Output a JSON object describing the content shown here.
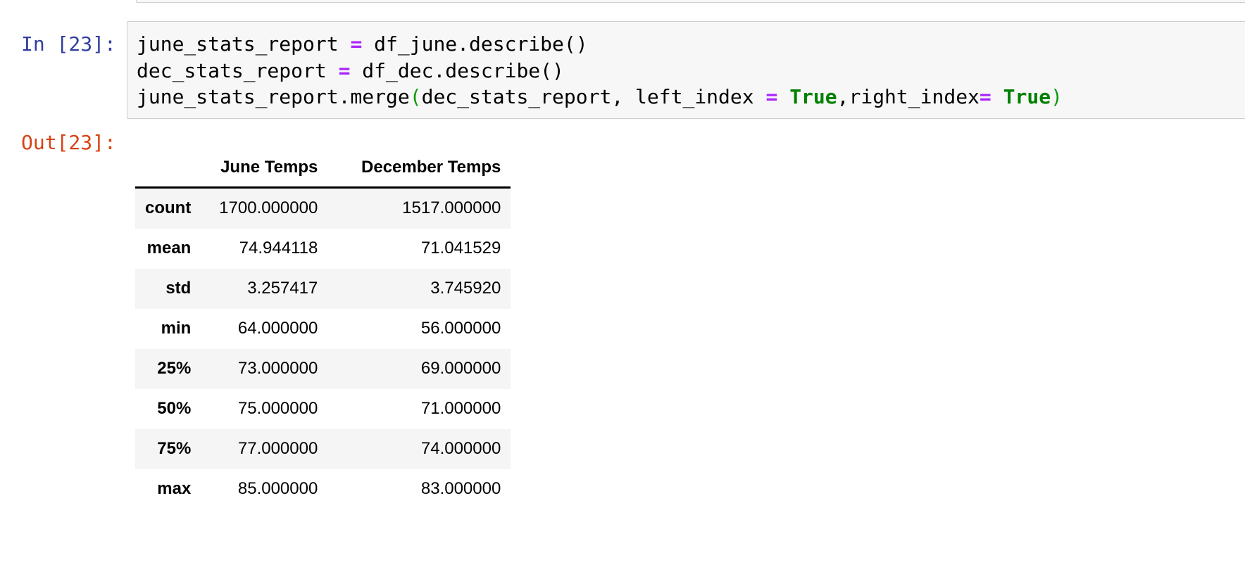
{
  "input_cell": {
    "prompt": "In [23]:",
    "code_lines": [
      [
        {
          "text": "june_stats_report ",
          "style": "plain"
        },
        {
          "text": "=",
          "style": "op"
        },
        {
          "text": " df_june.describe()",
          "style": "plain"
        }
      ],
      [
        {
          "text": "dec_stats_report ",
          "style": "plain"
        },
        {
          "text": "=",
          "style": "op"
        },
        {
          "text": " df_dec.describe()",
          "style": "plain"
        }
      ],
      [
        {
          "text": "june_stats_report.merge",
          "style": "plain"
        },
        {
          "text": "(",
          "style": "br"
        },
        {
          "text": "dec_stats_report, left_index ",
          "style": "plain"
        },
        {
          "text": "=",
          "style": "op"
        },
        {
          "text": " ",
          "style": "plain"
        },
        {
          "text": "True",
          "style": "kw"
        },
        {
          "text": ",right_index",
          "style": "plain"
        },
        {
          "text": "=",
          "style": "op"
        },
        {
          "text": " ",
          "style": "plain"
        },
        {
          "text": "True",
          "style": "kw"
        },
        {
          "text": ")",
          "style": "br"
        }
      ]
    ]
  },
  "output_cell": {
    "prompt": "Out[23]:",
    "table": {
      "index_header": "",
      "columns": [
        "June Temps",
        "December Temps"
      ],
      "rows": [
        {
          "index": "count",
          "values": [
            "1700.000000",
            "1517.000000"
          ]
        },
        {
          "index": "mean",
          "values": [
            "74.944118",
            "71.041529"
          ]
        },
        {
          "index": "std",
          "values": [
            "3.257417",
            "3.745920"
          ]
        },
        {
          "index": "min",
          "values": [
            "64.000000",
            "56.000000"
          ]
        },
        {
          "index": "25%",
          "values": [
            "73.000000",
            "69.000000"
          ]
        },
        {
          "index": "50%",
          "values": [
            "75.000000",
            "71.000000"
          ]
        },
        {
          "index": "75%",
          "values": [
            "77.000000",
            "74.000000"
          ]
        },
        {
          "index": "max",
          "values": [
            "85.000000",
            "83.000000"
          ]
        }
      ]
    }
  },
  "colors": {
    "in_prompt": "#303f9f",
    "out_prompt": "#d84315",
    "operator": "#aa22ff",
    "keyword": "#008000",
    "bracket": "#0b9b0b",
    "code_background": "#f7f7f7",
    "row_stripe": "#f5f5f5"
  }
}
